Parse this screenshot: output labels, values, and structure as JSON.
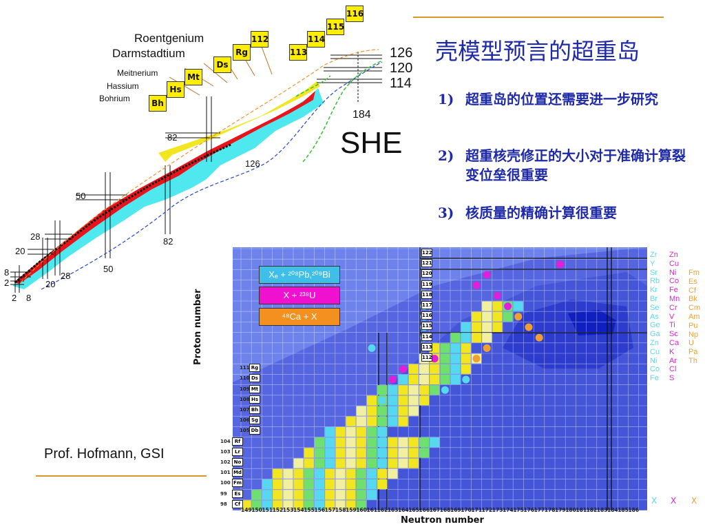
{
  "title": "壳模型预言的超重岛",
  "bullets": [
    {
      "num": "1)",
      "text": "超重岛的位置还需要进一步研究"
    },
    {
      "num": "2)",
      "text": "超重核壳修正的大小对于准确计算裂变位垒很重要"
    },
    {
      "num": "3)",
      "text": "核质量的精确计算很重要"
    }
  ],
  "credit": "Prof. Hofmann, GSI",
  "chart_left": {
    "element_names": [
      "Roentgenium",
      "Darmstadtium",
      "Meitnerium",
      "Hassium",
      "Bohrium"
    ],
    "element_boxes": [
      "Bh",
      "Hs",
      "Mt",
      "Ds",
      "Rg",
      "112",
      "113",
      "114",
      "115",
      "116"
    ],
    "magic_proton_labels": [
      "126",
      "120",
      "114"
    ],
    "neutron_magic_label": "184",
    "she_label": "SHE",
    "magic_numbers_diag": [
      "82",
      "126",
      "50",
      "28",
      "20",
      "8",
      "2",
      "82",
      "50",
      "28",
      "20",
      "2",
      "8"
    ]
  },
  "chart_right": {
    "x_axis_label": "Neutron number",
    "y_axis_label": "Proton number",
    "neutron_ticks": [
      "149",
      "150",
      "151",
      "152",
      "153",
      "154",
      "155",
      "156",
      "157",
      "158",
      "159",
      "160",
      "161",
      "162",
      "163",
      "164",
      "165",
      "166",
      "167",
      "168",
      "169",
      "170",
      "171",
      "172",
      "173",
      "174",
      "175",
      "176",
      "177",
      "178",
      "179",
      "180",
      "181",
      "182",
      "183",
      "184",
      "185",
      "186"
    ],
    "proton_ticks": [
      "104",
      "103",
      "102",
      "101",
      "100",
      "99",
      "98"
    ],
    "element_labels": [
      {
        "z": "122"
      },
      {
        "z": "121"
      },
      {
        "z": "120"
      },
      {
        "z": "119"
      },
      {
        "z": "118"
      },
      {
        "z": "117"
      },
      {
        "z": "116"
      },
      {
        "z": "115"
      },
      {
        "z": "114"
      },
      {
        "z": "113"
      },
      {
        "z": "112"
      },
      {
        "z": "111",
        "sym": "Rg"
      },
      {
        "z": "110",
        "sym": "Ds"
      },
      {
        "z": "109",
        "sym": "Mt"
      },
      {
        "z": "108",
        "sym": "Hs"
      },
      {
        "z": "107",
        "sym": "Bh"
      },
      {
        "z": "106",
        "sym": "Sg"
      },
      {
        "z": "105",
        "sym": "Db"
      },
      {
        "z": "104",
        "sym": "Rf"
      },
      {
        "z": "103",
        "sym": "Lr"
      },
      {
        "z": "102",
        "sym": "No"
      },
      {
        "z": "101",
        "sym": "Md"
      },
      {
        "z": "100",
        "sym": "Fm"
      },
      {
        "z": "99",
        "sym": "Es"
      },
      {
        "z": "98",
        "sym": "Cf"
      }
    ],
    "legend": [
      {
        "text": "Xₑ + ²⁰⁸Pb,²⁰⁹Bi",
        "color": "#3fbfe8"
      },
      {
        "text": "X + ²³⁸U",
        "color": "#f010d0"
      },
      {
        "text": "⁴⁸Ca + X",
        "color": "#f39020"
      }
    ],
    "projectiles": {
      "cyan": [
        "Zr",
        "Y",
        "Sr",
        "Rb",
        "Kr",
        "Br",
        "Se",
        "As",
        "Ge",
        "Ga",
        "Zn",
        "Cu",
        "Ni",
        "Co",
        "Fe"
      ],
      "magenta": [
        "Zn",
        "Cu",
        "Ni",
        "Co",
        "Fe",
        "Mn",
        "Cr",
        "V",
        "Ti",
        "Sc",
        "Ca",
        "K",
        "Ar",
        "Cl",
        "S"
      ],
      "orange": [
        "Fm",
        "Es",
        "Cf",
        "Bk",
        "Cm",
        "Am",
        "Pu",
        "Np",
        "U",
        "Pa",
        "Th"
      ],
      "bottom_marks": [
        "X",
        "X",
        "X"
      ]
    },
    "colors": {
      "cyan": "#56d8f0",
      "magenta": "#e020d8",
      "orange": "#f0a030",
      "background": "#4a5ee0"
    }
  }
}
